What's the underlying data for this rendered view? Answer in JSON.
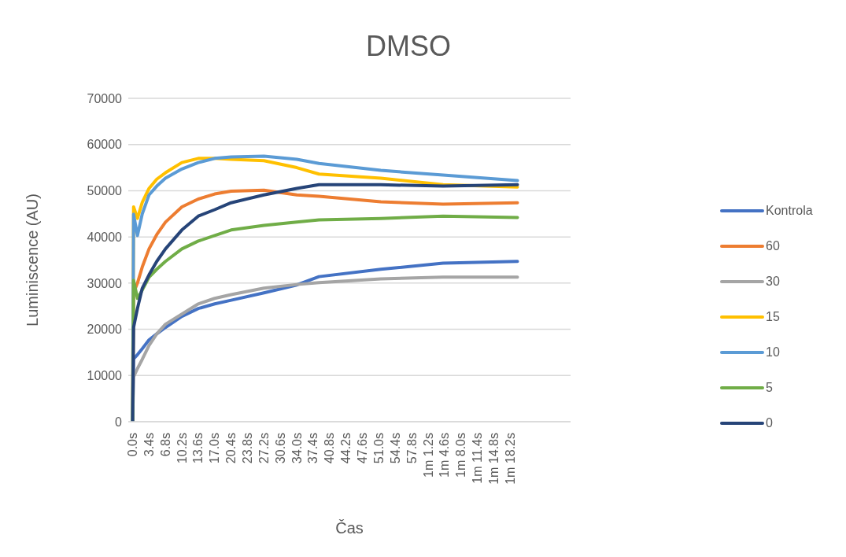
{
  "chart_data": {
    "type": "line",
    "title": "DMSO",
    "xlabel": "Čas",
    "ylabel": "Luminiscence (AU)",
    "x": [
      0,
      0.2,
      1,
      2,
      3.4,
      5,
      6.8,
      10.2,
      13.6,
      17,
      20.4,
      27.2,
      34,
      38.6,
      51.4,
      64.3,
      79.7
    ],
    "series": [
      {
        "name": "Kontrola",
        "color": "#4472c4",
        "values": [
          0,
          13600,
          14500,
          15800,
          17700,
          19000,
          20400,
          22800,
          24500,
          25500,
          26300,
          27900,
          29600,
          31400,
          33000,
          34300,
          34700
        ]
      },
      {
        "name": "60",
        "color": "#ed7d31",
        "values": [
          0,
          27900,
          30000,
          33500,
          37400,
          40500,
          43200,
          46500,
          48200,
          49300,
          49900,
          50100,
          49100,
          48800,
          47600,
          47100,
          47400
        ]
      },
      {
        "name": "30",
        "color": "#a5a5a5",
        "values": [
          0,
          9700,
          11500,
          13500,
          16500,
          19000,
          21100,
          23300,
          25500,
          26700,
          27500,
          28900,
          29700,
          30100,
          30900,
          31300,
          31300
        ]
      },
      {
        "name": "15",
        "color": "#ffc000",
        "values": [
          0,
          46500,
          44000,
          47500,
          50500,
          52500,
          53900,
          56100,
          57000,
          57000,
          56800,
          56500,
          55000,
          53600,
          52700,
          51300,
          50800
        ]
      },
      {
        "name": "10",
        "color": "#5b9bd5",
        "values": [
          0,
          44900,
          40300,
          45000,
          49100,
          51000,
          52700,
          54700,
          56100,
          57000,
          57300,
          57500,
          56800,
          55900,
          54400,
          53400,
          52200
        ]
      },
      {
        "name": "5",
        "color": "#70ad47",
        "values": [
          0,
          30600,
          26700,
          28500,
          31300,
          33000,
          34700,
          37400,
          39100,
          40300,
          41500,
          42500,
          43200,
          43700,
          44000,
          44500,
          44200
        ]
      },
      {
        "name": "0",
        "color": "#264478",
        "values": [
          0,
          20400,
          24500,
          28900,
          31800,
          34700,
          37400,
          41500,
          44500,
          45900,
          47400,
          49100,
          50500,
          51300,
          51300,
          51000,
          51300
        ]
      }
    ],
    "xlim": [
      -0.9,
      90.7
    ],
    "xticks": [
      {
        "value": 0,
        "label": "0.0s"
      },
      {
        "value": 3.4,
        "label": "3.4s"
      },
      {
        "value": 6.8,
        "label": "6.8s"
      },
      {
        "value": 10.2,
        "label": "10.2s"
      },
      {
        "value": 13.6,
        "label": "13.6s"
      },
      {
        "value": 17,
        "label": "17.0s"
      },
      {
        "value": 20.4,
        "label": "20.4s"
      },
      {
        "value": 23.8,
        "label": "23.8s"
      },
      {
        "value": 27.2,
        "label": "27.2s"
      },
      {
        "value": 30.6,
        "label": "30.6s"
      },
      {
        "value": 34,
        "label": "34.0s"
      },
      {
        "value": 37.4,
        "label": "37.4s"
      },
      {
        "value": 40.8,
        "label": "40.8s"
      },
      {
        "value": 44.2,
        "label": "44.2s"
      },
      {
        "value": 47.6,
        "label": "47.6s"
      },
      {
        "value": 51,
        "label": "51.0s"
      },
      {
        "value": 54.4,
        "label": "54.4s"
      },
      {
        "value": 57.8,
        "label": "57.8s"
      },
      {
        "value": 61.2,
        "label": "1m 1.2s"
      },
      {
        "value": 64.6,
        "label": "1m 4.6s"
      },
      {
        "value": 68,
        "label": "1m 8.0s"
      },
      {
        "value": 71.4,
        "label": "1m 11.4s"
      },
      {
        "value": 74.8,
        "label": "1m 14.8s"
      },
      {
        "value": 78.2,
        "label": "1m 18.2s"
      }
    ],
    "ylim": [
      0,
      70000
    ],
    "yticks": [
      0,
      10000,
      20000,
      30000,
      40000,
      50000,
      60000,
      70000
    ],
    "grid": "y",
    "legend": "right",
    "marker": "none",
    "line_style": "solid"
  }
}
